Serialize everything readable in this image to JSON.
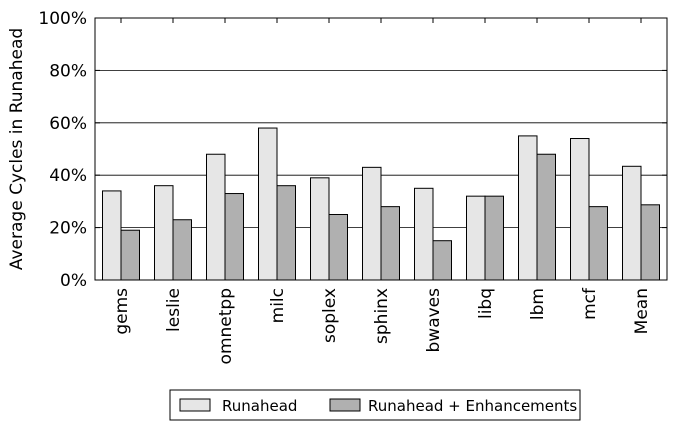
{
  "chart_data": {
    "type": "bar",
    "ylabel": "Average Cycles in Runahead",
    "xlabel": "",
    "ylim": [
      0,
      100
    ],
    "y_ticks": [
      "0%",
      "20%",
      "40%",
      "60%",
      "80%",
      "100%"
    ],
    "y_tick_values": [
      0,
      20,
      40,
      60,
      80,
      100
    ],
    "grid": "horizontal",
    "legend_position": "bottom-center",
    "categories": [
      "gems",
      "leslie",
      "omnetpp",
      "milc",
      "soplex",
      "sphinx",
      "bwaves",
      "libq",
      "lbm",
      "mcf",
      "Mean"
    ],
    "series": [
      {
        "name": "Runahead",
        "color": "#e6e6e6",
        "values": [
          34,
          36,
          48,
          58,
          39,
          43,
          35,
          32,
          55,
          54,
          43.4
        ]
      },
      {
        "name": "Runahead + Enhancements",
        "color": "#b0b0b0",
        "values": [
          19,
          23,
          33,
          36,
          25,
          28,
          15,
          32,
          48,
          28,
          28.7
        ]
      }
    ]
  }
}
